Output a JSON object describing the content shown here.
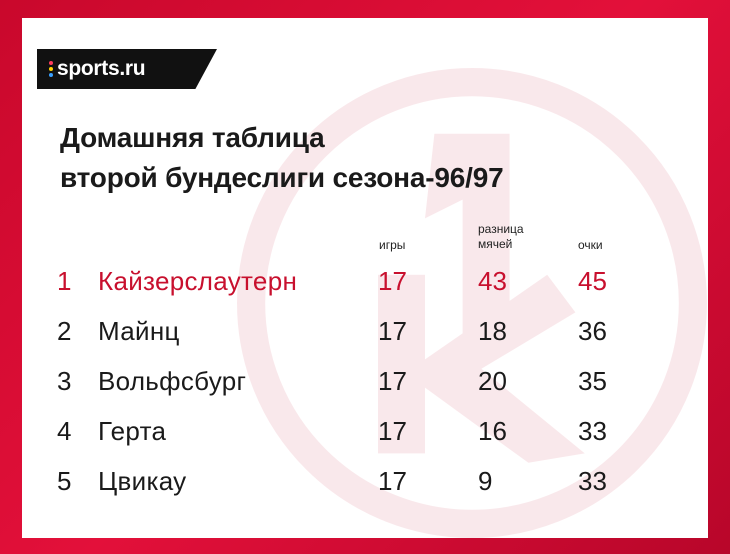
{
  "brand": {
    "name": "sports.ru",
    "dot_colors": [
      "#ff3b5c",
      "#ffd400",
      "#3aa0ff"
    ]
  },
  "title": {
    "line1": "Домашняя таблица",
    "line2": "второй бундеслиги сезона-96/97"
  },
  "columns": {
    "games": "игры",
    "diff_line1": "разница",
    "diff_line2": "мячей",
    "points": "очки"
  },
  "rows": [
    {
      "rank": "1",
      "team": "Кайзерслаутерн",
      "games": "17",
      "diff": "43",
      "points": "45",
      "highlight": true
    },
    {
      "rank": "2",
      "team": "Майнц",
      "games": "17",
      "diff": "18",
      "points": "36",
      "highlight": false
    },
    {
      "rank": "3",
      "team": "Вольфсбург",
      "games": "17",
      "diff": "20",
      "points": "35",
      "highlight": false
    },
    {
      "rank": "4",
      "team": "Герта",
      "games": "17",
      "diff": "16",
      "points": "33",
      "highlight": false
    },
    {
      "rank": "5",
      "team": "Цвикау",
      "games": "17",
      "diff": "9",
      "points": "33",
      "highlight": false
    }
  ],
  "colors": {
    "accent": "#c8102e",
    "background": "#e3103a",
    "text": "#1a1a1a"
  }
}
